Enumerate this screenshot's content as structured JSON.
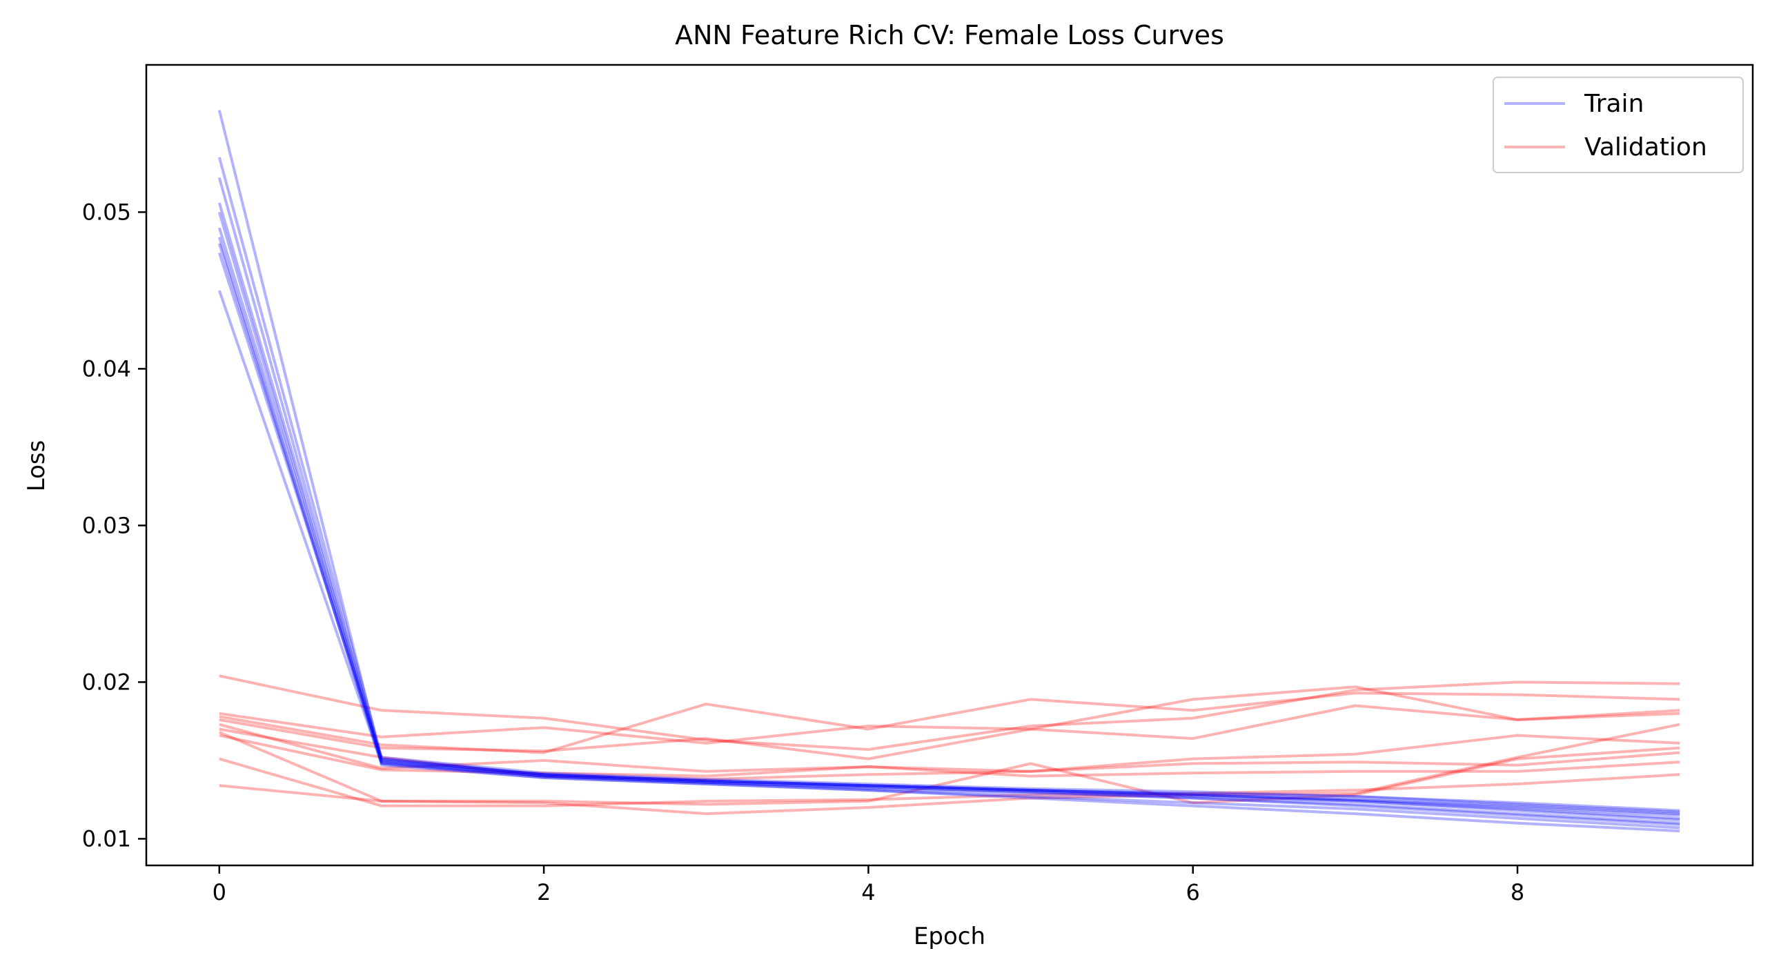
{
  "chart_data": {
    "type": "line",
    "title": "ANN Feature Rich CV: Female Loss Curves",
    "xlabel": "Epoch",
    "ylabel": "Loss",
    "xlim": [
      -0.45,
      9.45
    ],
    "ylim": [
      0.0083,
      0.0594
    ],
    "xticks": [
      0,
      2,
      4,
      6,
      8
    ],
    "yticks": [
      0.01,
      0.02,
      0.03,
      0.04,
      0.05
    ],
    "grid": false,
    "legend_position": "top-right",
    "legend": [
      {
        "label": "Train",
        "color": "#0000ff"
      },
      {
        "label": "Validation",
        "color": "#ff0000"
      }
    ],
    "x": [
      0,
      1,
      2,
      3,
      4,
      5,
      6,
      7,
      8,
      9
    ],
    "train_color": "#0000ff",
    "validation_color": "#ff0000",
    "train_series": [
      [
        0.0565,
        0.015,
        0.0141,
        0.0137,
        0.0134,
        0.0131,
        0.0128,
        0.0125,
        0.012,
        0.0115
      ],
      [
        0.0535,
        0.0152,
        0.0142,
        0.0138,
        0.0135,
        0.0132,
        0.013,
        0.0127,
        0.0122,
        0.0117
      ],
      [
        0.0522,
        0.0149,
        0.014,
        0.0136,
        0.0133,
        0.013,
        0.0127,
        0.0124,
        0.0118,
        0.0112
      ],
      [
        0.0506,
        0.0151,
        0.0141,
        0.0137,
        0.0134,
        0.0131,
        0.0128,
        0.0125,
        0.0121,
        0.0116
      ],
      [
        0.05,
        0.0148,
        0.014,
        0.0136,
        0.0132,
        0.0129,
        0.0126,
        0.0122,
        0.0116,
        0.011
      ],
      [
        0.049,
        0.015,
        0.0141,
        0.0137,
        0.0134,
        0.0131,
        0.0129,
        0.0127,
        0.0123,
        0.0118
      ],
      [
        0.0484,
        0.0147,
        0.0139,
        0.0135,
        0.0131,
        0.0127,
        0.0123,
        0.0119,
        0.0113,
        0.0107
      ],
      [
        0.048,
        0.0149,
        0.014,
        0.0136,
        0.0133,
        0.013,
        0.0126,
        0.0121,
        0.0115,
        0.0109
      ],
      [
        0.0474,
        0.0151,
        0.0141,
        0.0137,
        0.0134,
        0.0131,
        0.0128,
        0.0124,
        0.0119,
        0.0113
      ],
      [
        0.045,
        0.0148,
        0.0139,
        0.0135,
        0.0131,
        0.0126,
        0.0121,
        0.0116,
        0.011,
        0.0105
      ]
    ],
    "validation_series": [
      [
        0.0204,
        0.0182,
        0.0177,
        0.0163,
        0.0157,
        0.0172,
        0.0177,
        0.0195,
        0.02,
        0.0199
      ],
      [
        0.018,
        0.0165,
        0.0171,
        0.0161,
        0.0172,
        0.017,
        0.0164,
        0.0185,
        0.0176,
        0.0182
      ],
      [
        0.0178,
        0.016,
        0.0155,
        0.0186,
        0.017,
        0.0189,
        0.0182,
        0.0193,
        0.0192,
        0.0189
      ],
      [
        0.0176,
        0.0158,
        0.0156,
        0.0164,
        0.0151,
        0.017,
        0.0189,
        0.0197,
        0.0176,
        0.018
      ],
      [
        0.0173,
        0.0145,
        0.015,
        0.0143,
        0.0146,
        0.0143,
        0.0151,
        0.0154,
        0.0166,
        0.0161
      ],
      [
        0.017,
        0.0152,
        0.014,
        0.0138,
        0.0141,
        0.0143,
        0.0148,
        0.0149,
        0.0147,
        0.0155
      ],
      [
        0.0168,
        0.0124,
        0.0124,
        0.0122,
        0.0124,
        0.0148,
        0.0123,
        0.0128,
        0.0151,
        0.0158
      ],
      [
        0.0166,
        0.0144,
        0.0142,
        0.014,
        0.0146,
        0.014,
        0.0142,
        0.0143,
        0.0143,
        0.0149
      ],
      [
        0.0151,
        0.0121,
        0.0121,
        0.0124,
        0.0125,
        0.0128,
        0.0129,
        0.0131,
        0.0135,
        0.0141
      ],
      [
        0.0134,
        0.0124,
        0.0123,
        0.0116,
        0.012,
        0.0126,
        0.0128,
        0.0129,
        0.0152,
        0.0173
      ]
    ]
  }
}
